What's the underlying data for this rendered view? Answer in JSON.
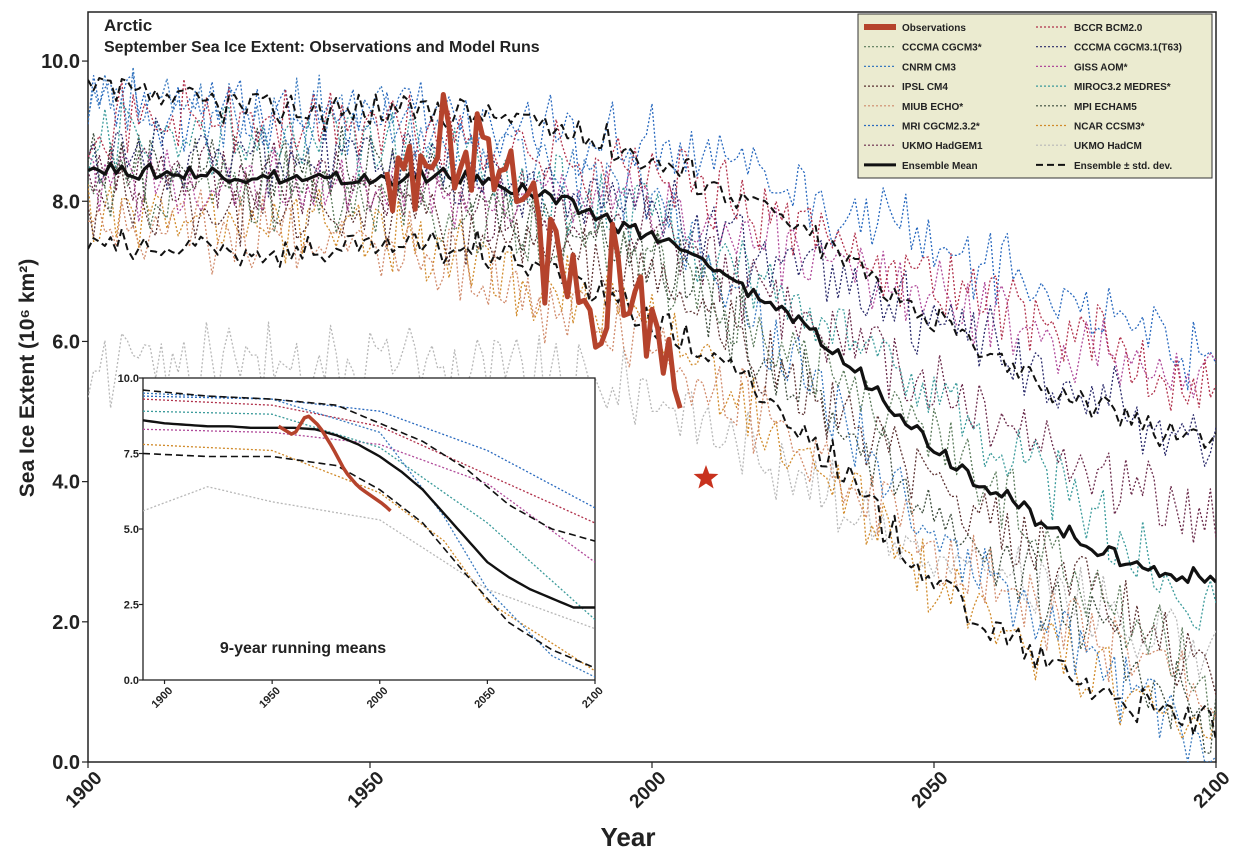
{
  "chart_data": [
    {
      "type": "line",
      "title": "Arctic",
      "subtitle": "September Sea Ice Extent: Observations and Model Runs",
      "xlabel": "Year",
      "ylabel": "Sea Ice Extent (10⁶ km²)",
      "xlim": [
        1900,
        2100
      ],
      "ylim": [
        0,
        10.7
      ],
      "xticks": [
        "1900",
        "1950",
        "2000",
        "2050",
        "2100"
      ],
      "yticks": [
        "0.0",
        "2.0",
        "4.0",
        "6.0",
        "8.0",
        "10.0"
      ],
      "legend_position": "top-right",
      "legend": [
        "Observations",
        "BCCR BCM2.0",
        "CCCMA CGCM3*",
        "CCCMA CGCM3.1(T63)",
        "CNRM CM3",
        "GISS AOM*",
        "IPSL CM4",
        "MIROC3.2 MEDRES*",
        "MIUB ECHO*",
        "MPI ECHAM5",
        "MRI CGCM2.3.2*",
        "NCAR CCSM3*",
        "UKMO HadGEM1",
        "UKMO HadCM",
        "Ensemble Mean",
        "Ensemble ± std. dev."
      ],
      "series": [
        {
          "name": "Observations",
          "color": "#b5432c",
          "x": [
            1953,
            1955,
            1957,
            1959,
            1961,
            1963,
            1965,
            1967,
            1969,
            1971,
            1973,
            1975,
            1977,
            1979,
            1981,
            1983,
            1985,
            1987,
            1989,
            1991,
            1993,
            1995,
            1997,
            1999,
            2001,
            2003,
            2005
          ],
          "y": [
            8.5,
            8.2,
            8.6,
            8.1,
            8.7,
            8.9,
            8.5,
            8.3,
            9.0,
            8.3,
            8.9,
            8.2,
            7.8,
            8.4,
            7.0,
            7.6,
            6.8,
            7.2,
            6.5,
            6.2,
            7.0,
            6.5,
            6.9,
            6.3,
            6.0,
            5.8,
            5.5
          ]
        },
        {
          "name": "Ensemble Mean",
          "color": "#111111",
          "x": [
            1900,
            1910,
            1920,
            1930,
            1940,
            1950,
            1960,
            1970,
            1980,
            1990,
            2000,
            2010,
            2020,
            2030,
            2040,
            2050,
            2060,
            2070,
            2080,
            2090,
            2100
          ],
          "y": [
            8.5,
            8.4,
            8.4,
            8.35,
            8.3,
            8.3,
            8.35,
            8.3,
            8.1,
            7.8,
            7.5,
            7.1,
            6.6,
            6.0,
            5.3,
            4.5,
            3.9,
            3.4,
            3.0,
            2.7,
            2.6
          ]
        },
        {
          "name": "Ensemble ± std. dev.",
          "color": "#111111",
          "x": [
            1900,
            1910,
            1920,
            1930,
            1940,
            1950,
            1960,
            1970,
            1980,
            1990,
            2000,
            2010,
            2020,
            2030,
            2040,
            2050,
            2060,
            2070,
            2080,
            2090,
            2100
          ],
          "y": [
            9.6,
            9.5,
            9.4,
            9.35,
            9.3,
            9.3,
            9.3,
            9.25,
            9.1,
            8.9,
            8.6,
            8.3,
            7.9,
            7.4,
            6.9,
            6.3,
            5.8,
            5.4,
            5.0,
            4.8,
            4.6
          ]
        },
        {
          "name": "Ensemble ± std. dev.",
          "color": "#111111",
          "x": [
            1900,
            1910,
            1920,
            1930,
            1940,
            1950,
            1960,
            1970,
            1980,
            1990,
            2000,
            2010,
            2020,
            2030,
            2040,
            2050,
            2060,
            2070,
            2080,
            2090,
            2100
          ],
          "y": [
            7.4,
            7.3,
            7.3,
            7.3,
            7.3,
            7.3,
            7.35,
            7.3,
            7.1,
            6.7,
            6.3,
            5.8,
            5.2,
            4.5,
            3.5,
            2.6,
            1.9,
            1.4,
            1.0,
            0.7,
            0.5
          ]
        },
        {
          "name": "BCCR BCM2.0",
          "color": "#b0304a",
          "x": [
            1900,
            1950,
            2000,
            2050,
            2100
          ],
          "y": [
            9.2,
            9.1,
            8.4,
            6.9,
            5.3
          ]
        },
        {
          "name": "CCCMA CGCM3*",
          "color": "#5a7a5a",
          "x": [
            1900,
            1950,
            2000,
            2050,
            2100
          ],
          "y": [
            8.2,
            8.1,
            7.1,
            4.6,
            1.0
          ]
        },
        {
          "name": "CCCMA CGCM3.1(T63)",
          "color": "#2a2a6a",
          "x": [
            1900,
            1950,
            2000,
            2050,
            2100
          ],
          "y": [
            8.7,
            8.6,
            7.9,
            6.3,
            4.4
          ]
        },
        {
          "name": "CNRM CM3",
          "color": "#3a7abf",
          "x": [
            1900,
            1950,
            2000,
            2050,
            2100
          ],
          "y": [
            9.4,
            9.2,
            8.1,
            3.2,
            0.1
          ]
        },
        {
          "name": "GISS AOM*",
          "color": "#b04a9a",
          "x": [
            1900,
            1950,
            2000,
            2050,
            2100
          ],
          "y": [
            8.3,
            8.2,
            7.9,
            6.6,
            5.4
          ]
        },
        {
          "name": "IPSL CM4",
          "color": "#5a3030",
          "x": [
            1900,
            1950,
            2000,
            2050,
            2100
          ],
          "y": [
            8.0,
            7.9,
            6.9,
            3.9,
            1.2
          ]
        },
        {
          "name": "MIROC3.2 MEDRES*",
          "color": "#3a9a9a",
          "x": [
            1900,
            1950,
            2000,
            2050,
            2100
          ],
          "y": [
            8.9,
            8.8,
            7.8,
            5.3,
            2.1
          ]
        },
        {
          "name": "MIUB ECHO*",
          "color": "#d08a6a",
          "x": [
            1900,
            1950,
            2000,
            2050,
            2100
          ],
          "y": [
            7.6,
            7.5,
            6.0,
            3.1,
            0.8
          ]
        },
        {
          "name": "MPI ECHAM5",
          "color": "#3a4a3a",
          "x": [
            1900,
            1950,
            2000,
            2050,
            2100
          ],
          "y": [
            8.6,
            8.5,
            7.3,
            3.6,
            0.5
          ]
        },
        {
          "name": "MRI CGCM2.3.2*",
          "color": "#2a6abf",
          "x": [
            1900,
            1950,
            2000,
            2050,
            2100
          ],
          "y": [
            9.3,
            9.3,
            8.8,
            7.4,
            5.6
          ]
        },
        {
          "name": "NCAR CCSM3*",
          "color": "#d08a2a",
          "x": [
            1900,
            1950,
            2000,
            2050,
            2100
          ],
          "y": [
            7.8,
            7.6,
            6.3,
            2.6,
            0.3
          ]
        },
        {
          "name": "UKMO HadGEM1",
          "color": "#6a2a4a",
          "x": [
            1900,
            1950,
            2000,
            2050,
            2100
          ],
          "y": [
            8.4,
            8.3,
            7.5,
            5.4,
            3.3
          ]
        },
        {
          "name": "UKMO HadCM",
          "color": "#b8b8b8",
          "x": [
            1900,
            1950,
            2000,
            2050,
            2100
          ],
          "y": [
            5.6,
            5.8,
            5.3,
            2.9,
            1.6
          ]
        }
      ]
    },
    {
      "type": "line",
      "title": "9-year running means",
      "xlim": [
        1890,
        2100
      ],
      "ylim": [
        0,
        10
      ],
      "xticks": [
        "1900",
        "1950",
        "2000",
        "2050",
        "2100"
      ],
      "yticks": [
        "0.0",
        "2.5",
        "5.0",
        "7.5",
        "10.0"
      ],
      "series": [
        {
          "name": "Observations",
          "color": "#b5432c",
          "x": [
            1953,
            1960,
            1966,
            1972,
            1978,
            1984,
            1990,
            1996,
            2002,
            2005
          ],
          "y": [
            8.4,
            8.1,
            8.8,
            8.4,
            7.7,
            6.9,
            6.4,
            6.1,
            5.8,
            5.6
          ]
        },
        {
          "name": "Ensemble Mean",
          "color": "#111111",
          "x": [
            1890,
            1900,
            1910,
            1920,
            1930,
            1940,
            1950,
            1960,
            1970,
            1980,
            1990,
            2000,
            2010,
            2020,
            2030,
            2040,
            2050,
            2060,
            2070,
            2080,
            2090,
            2100
          ],
          "y": [
            8.6,
            8.5,
            8.45,
            8.4,
            8.4,
            8.35,
            8.35,
            8.35,
            8.3,
            8.1,
            7.8,
            7.4,
            6.9,
            6.3,
            5.5,
            4.7,
            3.9,
            3.4,
            3.0,
            2.7,
            2.4,
            2.4
          ]
        },
        {
          "name": "Ensemble ± std. dev.",
          "color": "#111111",
          "x": [
            1890,
            1920,
            1950,
            1980,
            2000,
            2020,
            2040,
            2060,
            2080,
            2100
          ],
          "y": [
            9.6,
            9.4,
            9.3,
            9.1,
            8.5,
            7.9,
            7.0,
            5.8,
            5.0,
            4.6
          ]
        },
        {
          "name": "Ensemble ± std. dev.",
          "color": "#111111",
          "x": [
            1890,
            1920,
            1950,
            1980,
            2000,
            2020,
            2040,
            2060,
            2080,
            2100
          ],
          "y": [
            7.5,
            7.4,
            7.4,
            7.1,
            6.3,
            5.2,
            3.5,
            1.9,
            1.0,
            0.4
          ]
        },
        {
          "name": "CNRM CM3",
          "color": "#3a7abf",
          "x": [
            1890,
            1950,
            2000,
            2030,
            2050,
            2080,
            2100
          ],
          "y": [
            9.5,
            9.3,
            8.2,
            5.4,
            3.0,
            0.8,
            0.1
          ]
        },
        {
          "name": "BCCR BCM2.0",
          "color": "#b0304a",
          "x": [
            1890,
            1950,
            2000,
            2050,
            2100
          ],
          "y": [
            9.3,
            9.1,
            8.4,
            6.8,
            5.2
          ]
        },
        {
          "name": "MRI CGCM2.3.2*",
          "color": "#2a6abf",
          "x": [
            1890,
            1950,
            2000,
            2050,
            2100
          ],
          "y": [
            9.4,
            9.3,
            8.9,
            7.6,
            5.7
          ]
        },
        {
          "name": "UKMO HadCM",
          "color": "#b8b8b8",
          "x": [
            1890,
            1920,
            1950,
            2000,
            2050,
            2100
          ],
          "y": [
            5.6,
            6.4,
            5.9,
            5.3,
            3.0,
            1.7
          ]
        },
        {
          "name": "NCAR CCSM3*",
          "color": "#d08a2a",
          "x": [
            1890,
            1950,
            2000,
            2030,
            2050,
            2100
          ],
          "y": [
            7.8,
            7.6,
            6.2,
            4.6,
            2.6,
            0.3
          ]
        },
        {
          "name": "MIROC3.2 MEDRES*",
          "color": "#3a9a9a",
          "x": [
            1890,
            1950,
            2000,
            2050,
            2100
          ],
          "y": [
            8.9,
            8.8,
            7.7,
            5.2,
            2.0
          ]
        },
        {
          "name": "GISS AOM*",
          "color": "#b04a9a",
          "x": [
            1890,
            1950,
            2000,
            2050,
            2100
          ],
          "y": [
            8.3,
            8.2,
            7.8,
            6.5,
            3.9
          ]
        }
      ]
    }
  ]
}
